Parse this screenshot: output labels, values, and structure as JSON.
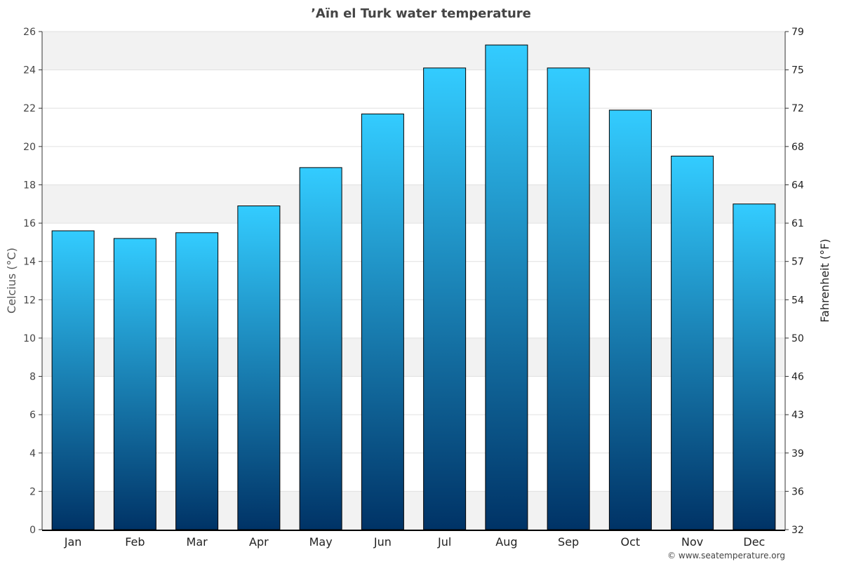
{
  "chart_data": {
    "type": "bar",
    "title": "’Aïn el Turk water temperature",
    "xlabel": "",
    "ylabel": "Celcius (°C)",
    "ylabel_right": "Fahrenheit (°F)",
    "categories": [
      "Jan",
      "Feb",
      "Mar",
      "Apr",
      "May",
      "Jun",
      "Jul",
      "Aug",
      "Sep",
      "Oct",
      "Nov",
      "Dec"
    ],
    "values": [
      15.6,
      15.2,
      15.5,
      16.9,
      18.9,
      21.7,
      24.1,
      25.3,
      24.1,
      21.9,
      19.5,
      17.0
    ],
    "ylim": [
      0,
      26
    ],
    "yticks": [
      0,
      2,
      4,
      6,
      8,
      10,
      12,
      14,
      16,
      18,
      20,
      22,
      24,
      26
    ],
    "yticks_right": [
      "32",
      "36",
      "39",
      "43",
      "46",
      "50",
      "54",
      "57",
      "61",
      "64",
      "68",
      "72",
      "75",
      "79"
    ],
    "grid": true,
    "colors": {
      "bar_top": "#33ccff",
      "bar_bottom": "#003366",
      "band": "#f2f2f2"
    }
  },
  "credit": "© www.seatemperature.org"
}
